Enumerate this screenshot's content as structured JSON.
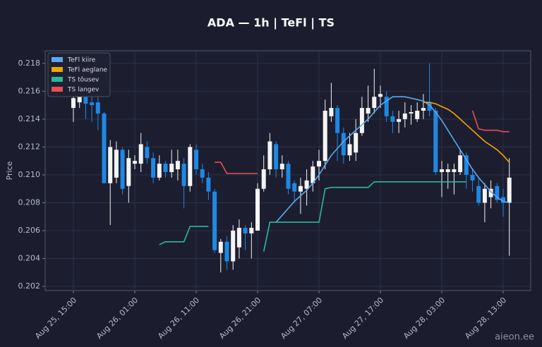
{
  "chart_data": {
    "type": "candlestick",
    "title": "ADA — 1h  |  TeFl  |  TS",
    "ylabel": "Price",
    "categories": [
      "Aug 25, 15:00",
      null,
      null,
      null,
      null,
      null,
      null,
      null,
      null,
      null,
      "Aug 26, 01:00",
      null,
      null,
      null,
      null,
      null,
      null,
      null,
      null,
      null,
      "Aug 26, 11:00",
      null,
      null,
      null,
      null,
      null,
      null,
      null,
      null,
      null,
      "Aug 26, 21:00",
      null,
      null,
      null,
      null,
      null,
      null,
      null,
      null,
      null,
      "Aug 27, 07:00",
      null,
      null,
      null,
      null,
      null,
      null,
      null,
      null,
      null,
      "Aug 27, 17:00",
      null,
      null,
      null,
      null,
      null,
      null,
      null,
      null,
      null,
      "Aug 28, 03:00",
      null,
      null,
      null,
      null,
      null,
      null,
      null,
      null,
      null,
      "Aug 28, 13:00",
      null
    ],
    "open": [
      0.2148,
      0.2152,
      0.2156,
      0.2152,
      0.2152,
      0.2144,
      0.2094,
      0.2098,
      0.2118,
      0.2092,
      0.2108,
      0.2108,
      0.212,
      0.2112,
      0.2098,
      0.2108,
      0.2102,
      0.2104,
      0.2108,
      0.2092,
      0.2118,
      0.2104,
      0.2098,
      0.2088,
      0.2044,
      0.2052,
      0.2038,
      0.2048,
      0.2062,
      0.2058,
      0.206,
      0.209,
      0.2104,
      0.2122,
      0.2104,
      0.2108,
      0.2094,
      0.2088,
      0.209,
      0.2094,
      0.2106,
      0.211,
      0.2142,
      0.2148,
      0.213,
      0.2114,
      0.2116,
      0.213,
      0.2144,
      0.2148,
      0.2156,
      0.2156,
      0.2142,
      0.2138,
      0.214,
      0.2144,
      0.214,
      0.2146,
      0.2152,
      0.2146,
      0.2102,
      0.2102,
      0.2102,
      0.2102,
      0.2114,
      0.21,
      0.2092,
      0.208,
      0.2084,
      0.2092,
      0.2084,
      0.208
    ],
    "high": [
      0.216,
      0.2162,
      0.2162,
      0.216,
      0.2156,
      0.2145,
      0.2125,
      0.2124,
      0.212,
      0.2118,
      0.2114,
      0.213,
      0.2124,
      0.2116,
      0.2114,
      0.211,
      0.2118,
      0.2118,
      0.2112,
      0.2122,
      0.2122,
      0.2108,
      0.2102,
      0.209,
      0.2054,
      0.2056,
      0.2064,
      0.2068,
      0.2064,
      0.2066,
      0.2094,
      0.2114,
      0.213,
      0.2124,
      0.2114,
      0.211,
      0.2096,
      0.2098,
      0.2104,
      0.211,
      0.2118,
      0.2154,
      0.2166,
      0.215,
      0.2134,
      0.213,
      0.214,
      0.2156,
      0.2164,
      0.2176,
      0.2164,
      0.216,
      0.2146,
      0.2146,
      0.2152,
      0.215,
      0.2152,
      0.2158,
      0.218,
      0.2148,
      0.211,
      0.2108,
      0.2108,
      0.2118,
      0.2116,
      0.2104,
      0.2098,
      0.2094,
      0.2096,
      0.2094,
      0.209,
      0.2112
    ],
    "low": [
      0.2138,
      0.2148,
      0.214,
      0.2138,
      0.2132,
      0.2094,
      0.2064,
      0.2094,
      0.2086,
      0.208,
      0.2104,
      0.2102,
      0.2108,
      0.2094,
      0.2096,
      0.2098,
      0.2098,
      0.2096,
      0.2076,
      0.2088,
      0.21,
      0.2094,
      0.2082,
      0.2044,
      0.203,
      0.2032,
      0.2032,
      0.204,
      0.2046,
      0.204,
      0.206,
      0.2088,
      0.21,
      0.2098,
      0.2098,
      0.2086,
      0.208,
      0.2072,
      0.2078,
      0.2088,
      0.2096,
      0.2104,
      0.2138,
      0.211,
      0.2108,
      0.211,
      0.211,
      0.2128,
      0.2138,
      0.2144,
      0.2148,
      0.2138,
      0.213,
      0.213,
      0.2134,
      0.2136,
      0.2138,
      0.214,
      0.2142,
      0.21,
      0.2084,
      0.209,
      0.2086,
      0.21,
      0.209,
      0.2088,
      0.2078,
      0.2066,
      0.2076,
      0.208,
      0.207,
      0.2042
    ],
    "close": [
      0.2155,
      0.2156,
      0.2151,
      0.215,
      0.2144,
      0.2094,
      0.212,
      0.2118,
      0.209,
      0.2112,
      0.211,
      0.2122,
      0.2112,
      0.2098,
      0.2108,
      0.2102,
      0.2108,
      0.211,
      0.2092,
      0.212,
      0.2104,
      0.2098,
      0.2088,
      0.2046,
      0.2052,
      0.2038,
      0.206,
      0.2062,
      0.2058,
      0.2062,
      0.209,
      0.2104,
      0.2124,
      0.2104,
      0.2108,
      0.209,
      0.2088,
      0.2092,
      0.2096,
      0.2106,
      0.211,
      0.2146,
      0.2148,
      0.213,
      0.2114,
      0.2122,
      0.213,
      0.2148,
      0.2148,
      0.2156,
      0.2158,
      0.2142,
      0.2138,
      0.214,
      0.2144,
      0.2145,
      0.2146,
      0.2148,
      0.2146,
      0.2102,
      0.2104,
      0.2104,
      0.2104,
      0.2114,
      0.21,
      0.2096,
      0.208,
      0.209,
      0.209,
      0.2082,
      0.208,
      0.2098
    ],
    "up_color": "#f4f4f4",
    "down_color": "#1e88e5",
    "series": [
      {
        "name": "TeFl kiire",
        "color": "#5aa9f0",
        "values": [
          null,
          null,
          null,
          null,
          null,
          null,
          null,
          null,
          null,
          null,
          null,
          null,
          null,
          null,
          null,
          null,
          null,
          null,
          null,
          null,
          null,
          null,
          null,
          null,
          null,
          null,
          null,
          null,
          null,
          null,
          null,
          null,
          null,
          0.2066,
          0.2071,
          0.2076,
          0.2081,
          0.2085,
          0.2089,
          0.2094,
          0.21,
          0.2107,
          0.2114,
          0.2119,
          0.2124,
          0.2128,
          0.2132,
          0.2136,
          0.214,
          0.2145,
          0.215,
          0.2153,
          0.2156,
          0.2156,
          0.2156,
          0.2155,
          0.2154,
          0.2153,
          0.215,
          0.2145,
          0.2139,
          0.2132,
          0.2125,
          0.2118,
          0.2111,
          0.2104,
          0.2098,
          0.2093,
          0.2088,
          0.2084,
          0.2081,
          0.208
        ]
      },
      {
        "name": "TeFl aeglane",
        "color": "#f0a500",
        "values": [
          null,
          null,
          null,
          null,
          null,
          null,
          null,
          null,
          null,
          null,
          null,
          null,
          null,
          null,
          null,
          null,
          null,
          null,
          null,
          null,
          null,
          null,
          null,
          null,
          null,
          null,
          null,
          null,
          null,
          null,
          null,
          null,
          null,
          null,
          null,
          null,
          null,
          null,
          null,
          null,
          null,
          null,
          null,
          null,
          null,
          null,
          null,
          null,
          null,
          null,
          null,
          null,
          null,
          null,
          null,
          null,
          null,
          0.2152,
          0.2152,
          0.2151,
          0.2149,
          0.2147,
          0.2144,
          0.214,
          0.2136,
          0.2132,
          0.2128,
          0.2124,
          0.2121,
          0.2118,
          0.2114,
          0.2109
        ]
      },
      {
        "name": "TS tõusev",
        "color": "#2bb89a",
        "values": [
          null,
          null,
          null,
          null,
          null,
          null,
          null,
          null,
          null,
          null,
          null,
          null,
          null,
          null,
          0.205,
          0.2052,
          0.2052,
          0.2052,
          0.2052,
          0.2063,
          0.2063,
          0.2063,
          0.2063,
          null,
          null,
          null,
          null,
          null,
          null,
          null,
          null,
          0.2045,
          0.2066,
          0.2066,
          0.2066,
          0.2066,
          0.2066,
          0.2066,
          0.2066,
          0.2066,
          0.2066,
          0.209,
          0.2091,
          0.2091,
          0.2091,
          0.2091,
          0.2091,
          0.2091,
          0.2091,
          0.2095,
          0.2095,
          0.2095,
          0.2095,
          0.2095,
          0.2095,
          0.2095,
          0.2095,
          0.2095,
          0.2095,
          0.2095,
          0.2095,
          0.2095,
          0.2095,
          0.2095,
          0.2095,
          null,
          null,
          null,
          null,
          null,
          null,
          null
        ]
      },
      {
        "name": "TS langev",
        "color": "#e84f4f",
        "values": [
          null,
          null,
          null,
          null,
          null,
          null,
          null,
          null,
          null,
          null,
          null,
          null,
          null,
          null,
          null,
          null,
          null,
          null,
          null,
          null,
          null,
          null,
          null,
          0.2109,
          0.2109,
          0.2101,
          0.2101,
          0.2101,
          0.2101,
          0.2101,
          0.2101,
          null,
          null,
          null,
          null,
          null,
          null,
          null,
          null,
          null,
          null,
          null,
          null,
          null,
          null,
          null,
          null,
          null,
          null,
          null,
          null,
          null,
          null,
          null,
          null,
          null,
          null,
          null,
          null,
          null,
          null,
          null,
          null,
          null,
          null,
          0.2146,
          0.2133,
          0.2132,
          0.2132,
          0.2132,
          0.2131,
          0.2131
        ]
      }
    ],
    "ylim": [
      0.2017,
      0.2189
    ],
    "yticks": [
      0.202,
      0.204,
      0.206,
      0.208,
      {
        "value": 0.21,
        "label": "0.210"
      },
      0.212,
      0.214,
      0.216,
      0.218
    ],
    "grid": true,
    "legend": "upper left"
  },
  "watermark": "aieon.ee"
}
